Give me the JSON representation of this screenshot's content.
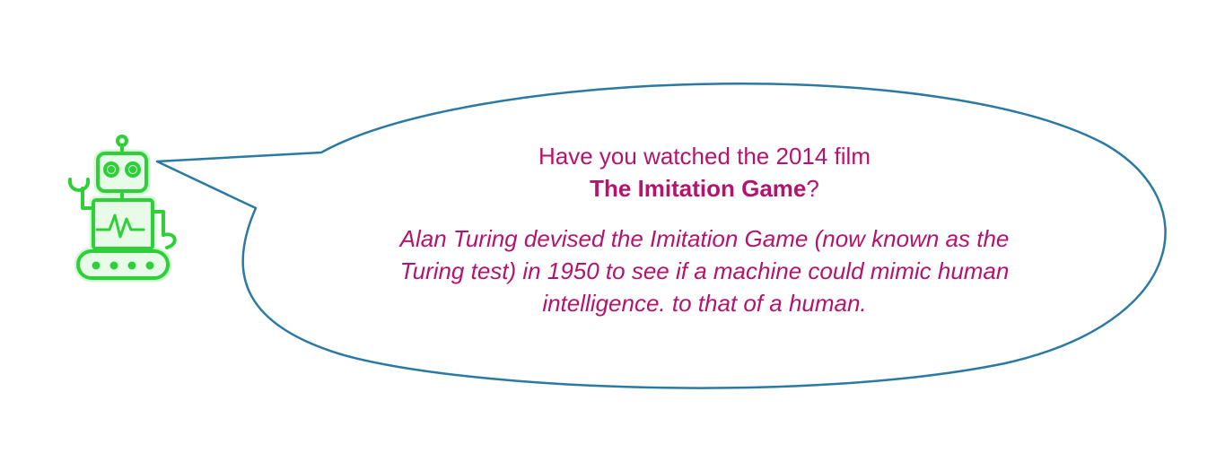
{
  "speech_bubble": {
    "question_line": "Have you watched the 2014 film",
    "film_title": "The Imitation Game",
    "question_mark": "?",
    "fact_text": "Alan Turing devised the Imitation Game (now known as the Turing test) in 1950 to see if a machine could mimic human intelligence. to that of a human."
  },
  "colors": {
    "text": "#b5136e",
    "bubble_outline": "#2a7aa3",
    "robot_outline": "#2fcf3a",
    "robot_fill": "#e8fbe8"
  },
  "icons": {
    "robot": "robot-icon"
  }
}
